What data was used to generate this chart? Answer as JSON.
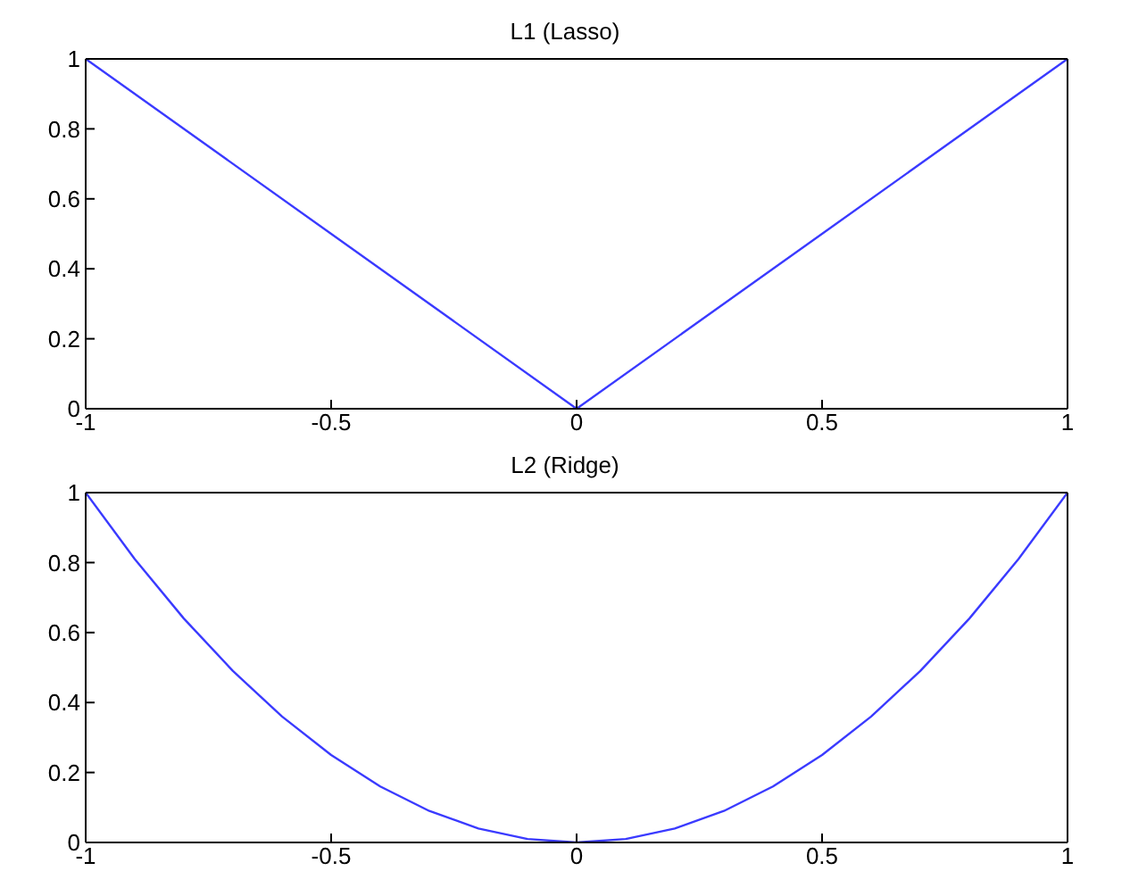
{
  "chart_data": [
    {
      "type": "line",
      "title": "L1 (Lasso)",
      "x": [
        -1,
        0,
        1
      ],
      "series": [
        {
          "color": "#3a3aff",
          "values": [
            1,
            0,
            1
          ]
        }
      ],
      "xlim": [
        -1,
        1
      ],
      "ylim": [
        0,
        1
      ],
      "xticks": [
        -1,
        -0.5,
        0,
        0.5,
        1
      ],
      "yticks": [
        0,
        0.2,
        0.4,
        0.6,
        0.8,
        1
      ],
      "grid": false,
      "legend": false,
      "marker": "none",
      "line_style": "solid"
    },
    {
      "type": "line",
      "title": "L2 (Ridge)",
      "x": [
        -1,
        -0.9,
        -0.8,
        -0.7,
        -0.6,
        -0.5,
        -0.4,
        -0.3,
        -0.2,
        -0.1,
        0,
        0.1,
        0.2,
        0.3,
        0.4,
        0.5,
        0.6,
        0.7,
        0.8,
        0.9,
        1
      ],
      "series": [
        {
          "color": "#3a3aff",
          "values": [
            1,
            0.81,
            0.64,
            0.49,
            0.36,
            0.25,
            0.16,
            0.09,
            0.04,
            0.01,
            0,
            0.01,
            0.04,
            0.09,
            0.16,
            0.25,
            0.36,
            0.49,
            0.64,
            0.81,
            1
          ]
        }
      ],
      "xlim": [
        -1,
        1
      ],
      "ylim": [
        0,
        1
      ],
      "xticks": [
        -1,
        -0.5,
        0,
        0.5,
        1
      ],
      "yticks": [
        0,
        0.2,
        0.4,
        0.6,
        0.8,
        1
      ],
      "grid": false,
      "legend": false,
      "marker": "none",
      "line_style": "solid"
    }
  ]
}
